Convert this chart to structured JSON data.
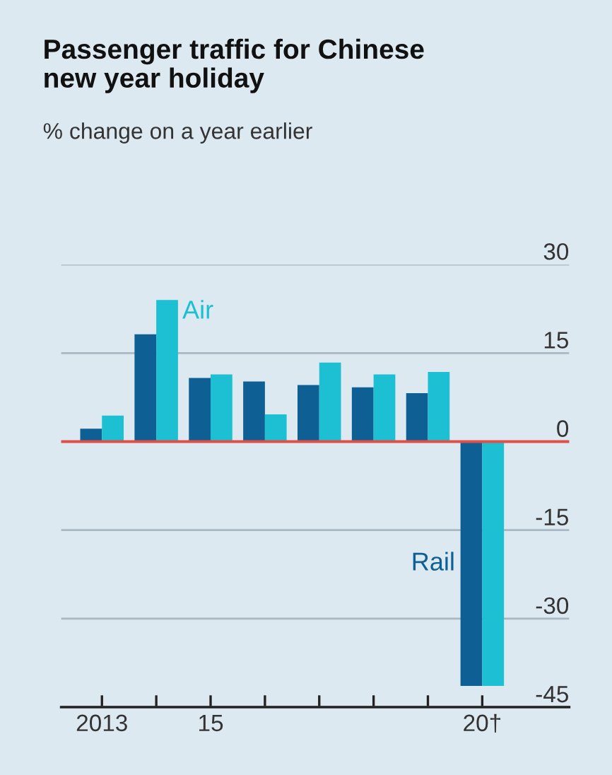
{
  "chart_data": {
    "type": "bar",
    "title": "Passenger traffic for Chinese\nnew year holiday",
    "subtitle": "% change on a year earlier",
    "categories": [
      "2013",
      null,
      "15",
      null,
      null,
      null,
      null,
      "20†"
    ],
    "series": [
      {
        "name": "Rail",
        "color": "#0e5f94",
        "values": [
          2.2,
          18.2,
          10.8,
          10.2,
          9.6,
          9.2,
          8.2,
          -41.4
        ]
      },
      {
        "name": "Air",
        "color": "#1dbfd2",
        "values": [
          4.4,
          24,
          11.4,
          4.6,
          13.4,
          11.4,
          11.8,
          -41.4
        ]
      }
    ],
    "ylim": [
      -45,
      30
    ],
    "yticks": [
      30,
      15,
      0,
      -15,
      -30,
      -45
    ],
    "grid": "y",
    "ref_lines": [
      {
        "axis": "y",
        "value": 0,
        "color": "#e0504a"
      }
    ]
  }
}
